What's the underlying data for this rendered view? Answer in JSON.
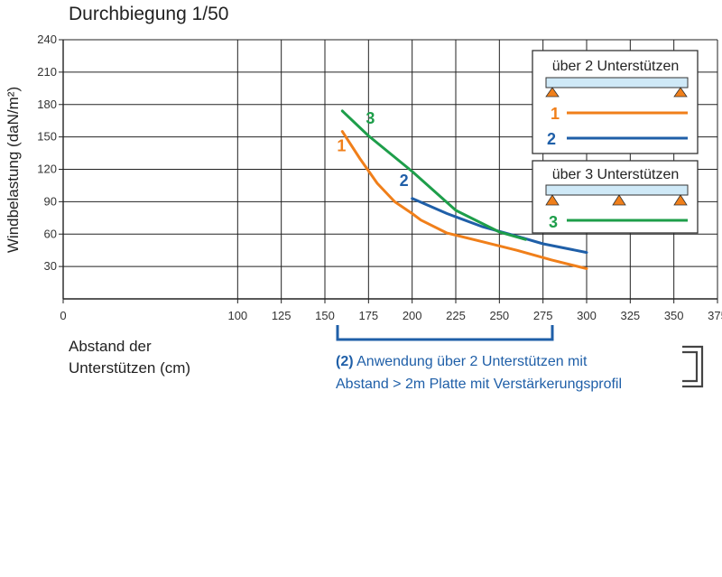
{
  "title": "Durchbiegung 1/50",
  "chart_data": {
    "type": "line",
    "title": "Durchbiegung 1/50",
    "ylabel": "Windbelastung  (daN/m²)",
    "xlabel_line1": "Abstand der",
    "xlabel_line2": "Unterstützen (cm)",
    "xlim": [
      0,
      375
    ],
    "ylim": [
      0,
      240
    ],
    "xticks": [
      0,
      100,
      125,
      150,
      175,
      200,
      225,
      250,
      275,
      300,
      325,
      350,
      375
    ],
    "yticks": [
      30,
      60,
      90,
      120,
      150,
      180,
      210,
      240
    ],
    "grid": true,
    "series": [
      {
        "name": "1",
        "color": "#f07f1a",
        "x": [
          160,
          170,
          180,
          190,
          200,
          205,
          220,
          240,
          260,
          280,
          300
        ],
        "y": [
          155,
          130,
          107,
          90,
          79,
          73,
          61,
          53,
          45,
          36,
          28
        ]
      },
      {
        "name": "2",
        "color": "#1f5fa8",
        "x": [
          200,
          220,
          240,
          260,
          275,
          300
        ],
        "y": [
          93,
          79,
          67,
          58,
          51,
          43
        ]
      },
      {
        "name": "3",
        "color": "#1e9e4a",
        "x": [
          160,
          175,
          200,
          225,
          250,
          265
        ],
        "y": [
          174,
          151,
          118,
          82,
          62,
          55
        ]
      }
    ],
    "legend": {
      "box1_title": "über 2 Unterstützen",
      "box2_title": "über 3 Unterstützen",
      "placement": "top-right"
    },
    "annotation": {
      "label_bold": "(2)",
      "line1": " Anwendung über 2 Unterstützen mit",
      "line2": "Abstand > 2m Platte mit Verstärkerungsprofil"
    }
  }
}
